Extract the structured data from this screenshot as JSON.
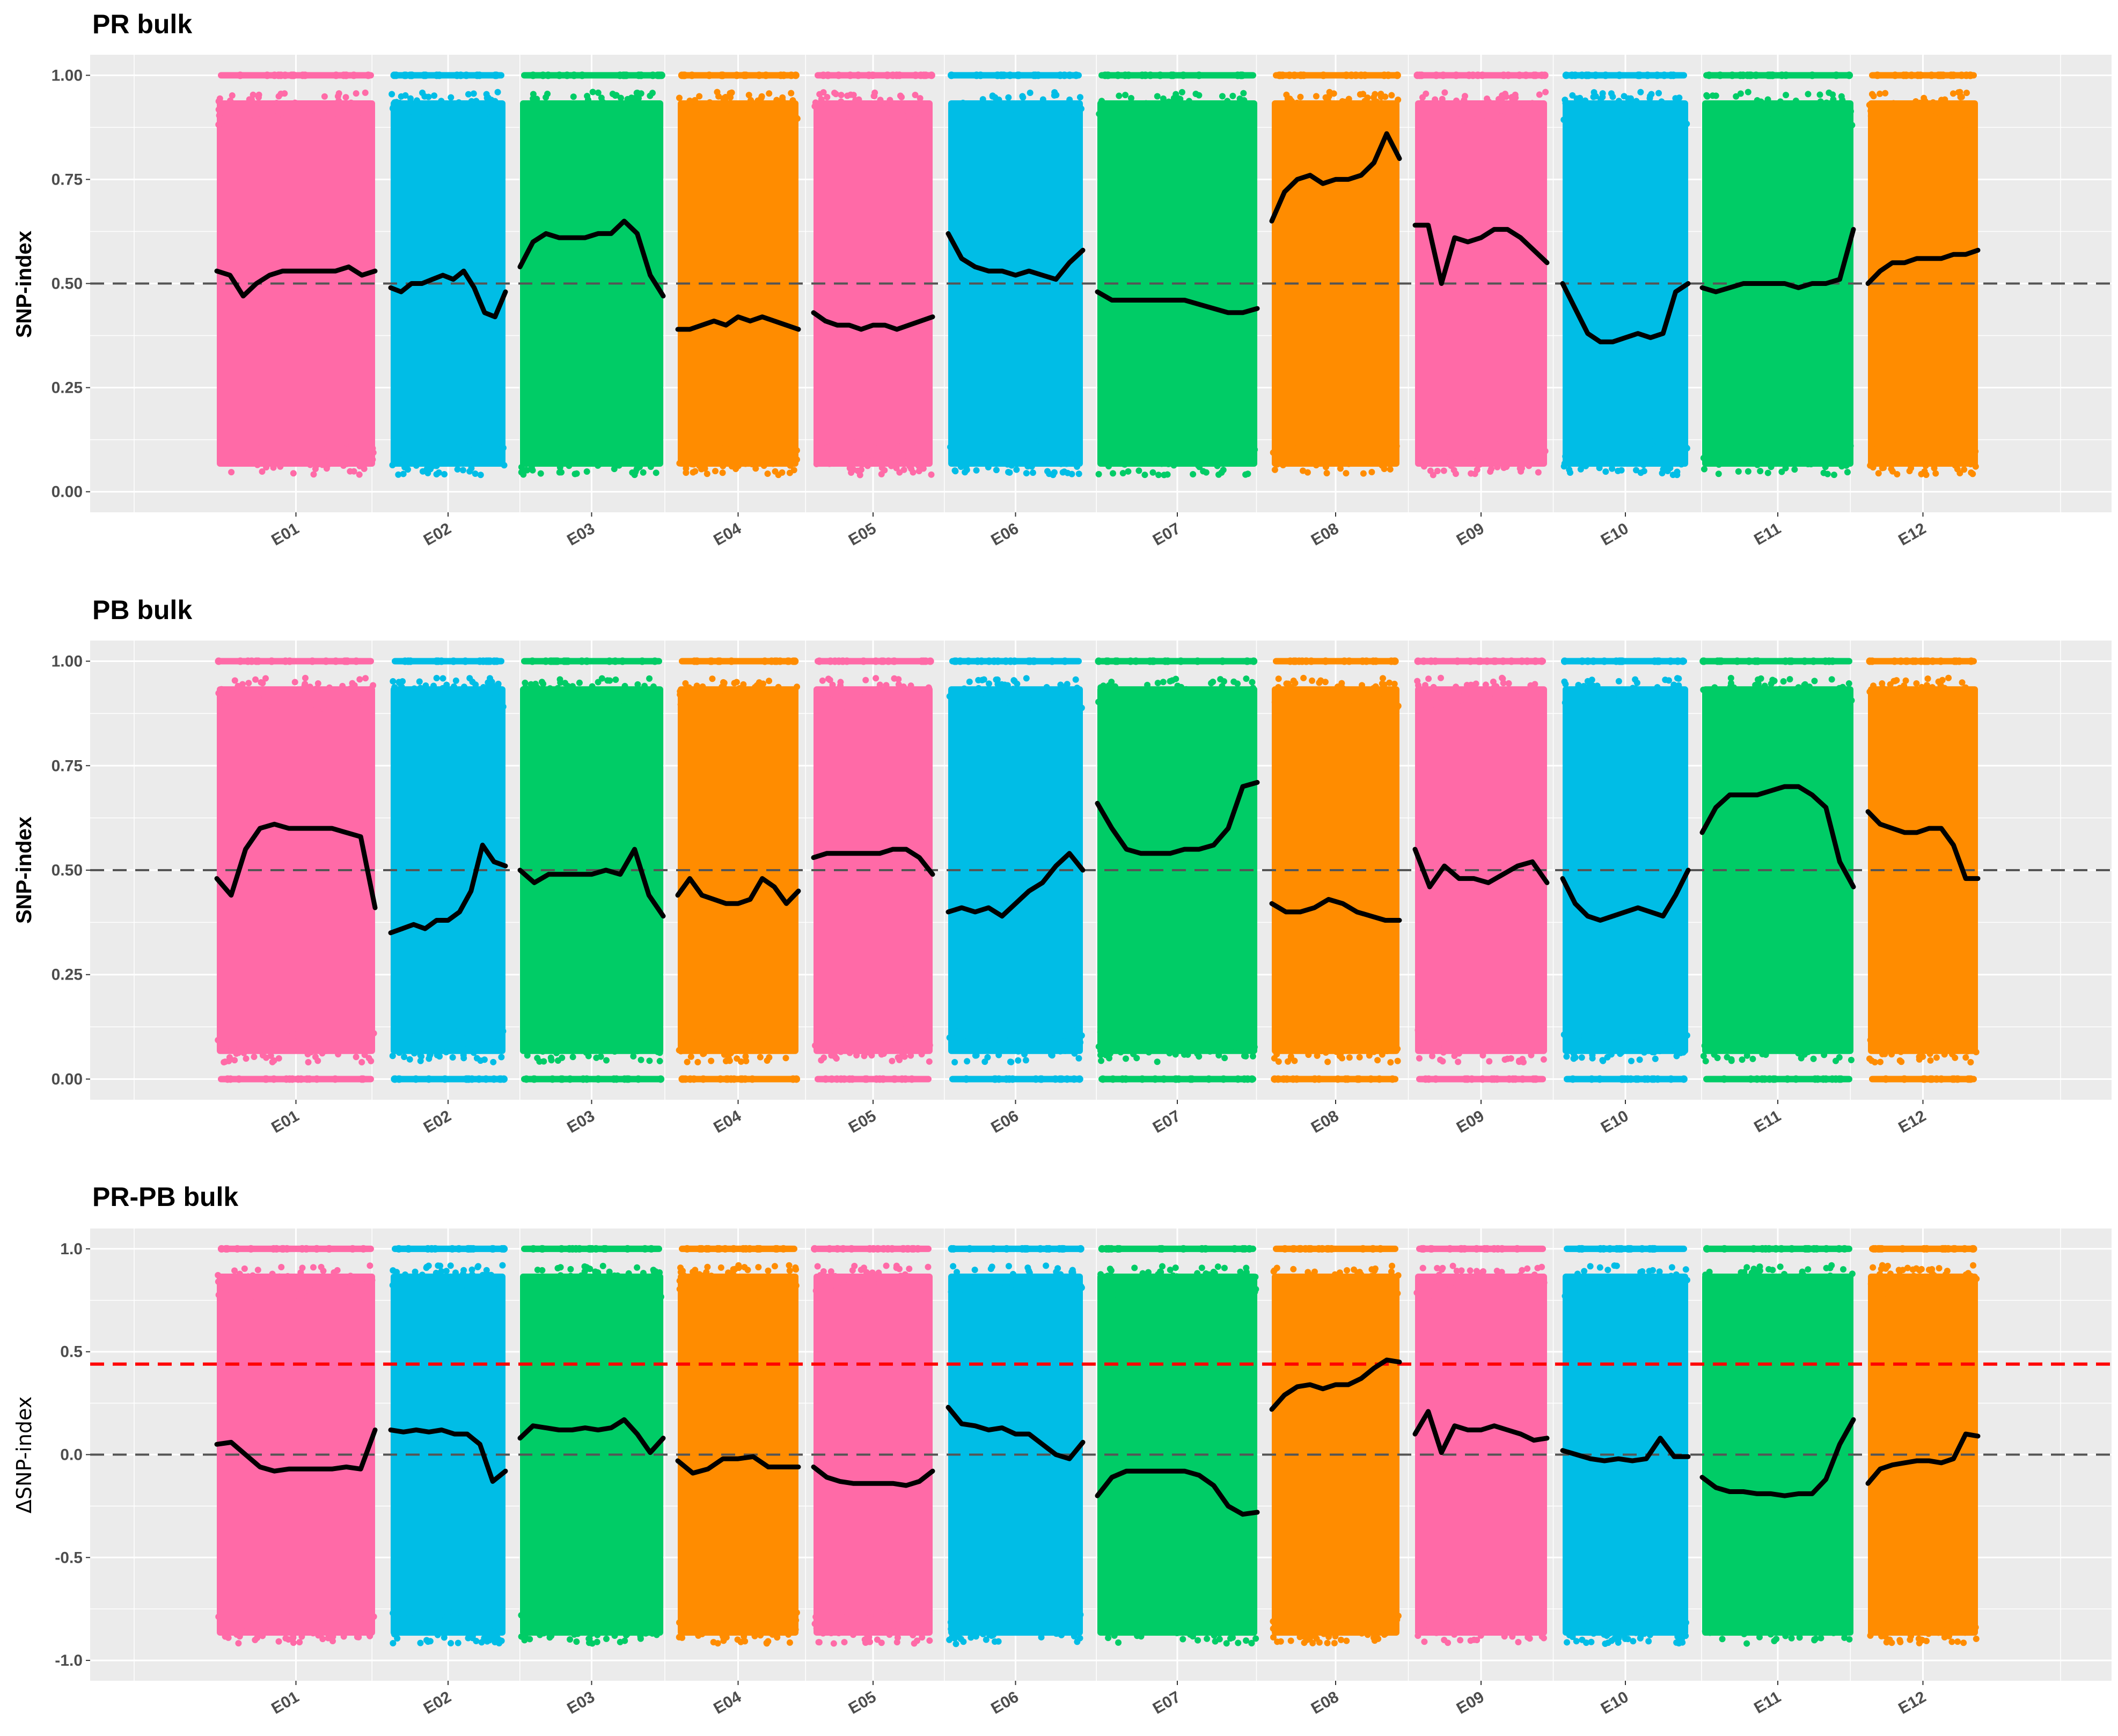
{
  "colors": {
    "pink": "#ff6aa7",
    "blue": "#00bde6",
    "green": "#00cc66",
    "orange": "#ff8c00",
    "trend": "#000000",
    "ref_line": "#555555",
    "threshold": "#ff0000",
    "panel_bg": "#ebebeb",
    "grid": "#ffffff"
  },
  "chart_data": [
    {
      "type": "scatter",
      "title": "PR bulk",
      "ylabel": "SNP-index",
      "ylim": [
        0,
        1
      ],
      "yticks": [
        "0.00",
        "0.25",
        "0.50",
        "0.75",
        "1.00"
      ],
      "categories": [
        "E01",
        "E02",
        "E03",
        "E04",
        "E05",
        "E06",
        "E07",
        "E08",
        "E09",
        "E10",
        "E11",
        "E12"
      ],
      "point_colors": [
        "pink",
        "blue",
        "green",
        "orange",
        "pink",
        "blue",
        "green",
        "orange",
        "pink",
        "blue",
        "green",
        "orange"
      ],
      "reference_lines": [
        {
          "y": 0.5,
          "style": "dashed",
          "color": "ref_line"
        }
      ],
      "grid": true,
      "series": [
        {
          "values": [
            [
              0.53,
              0.52,
              0.47,
              0.5,
              0.52,
              0.53,
              0.53,
              0.53,
              0.53,
              0.53,
              0.54,
              0.52,
              0.53
            ],
            [
              0.49,
              0.48,
              0.5,
              0.5,
              0.51,
              0.52,
              0.51,
              0.53,
              0.49,
              0.43,
              0.42,
              0.48
            ],
            [
              0.54,
              0.6,
              0.62,
              0.61,
              0.61,
              0.61,
              0.62,
              0.62,
              0.65,
              0.62,
              0.52,
              0.47
            ],
            [
              0.39,
              0.39,
              0.4,
              0.41,
              0.4,
              0.42,
              0.41,
              0.42,
              0.41,
              0.4,
              0.39
            ],
            [
              0.43,
              0.41,
              0.4,
              0.4,
              0.39,
              0.4,
              0.4,
              0.39,
              0.4,
              0.41,
              0.42
            ],
            [
              0.62,
              0.56,
              0.54,
              0.53,
              0.53,
              0.52,
              0.53,
              0.52,
              0.51,
              0.55,
              0.58
            ],
            [
              0.48,
              0.46,
              0.46,
              0.46,
              0.46,
              0.46,
              0.46,
              0.45,
              0.44,
              0.43,
              0.43,
              0.44
            ],
            [
              0.65,
              0.72,
              0.75,
              0.76,
              0.74,
              0.75,
              0.75,
              0.76,
              0.79,
              0.86,
              0.8
            ],
            [
              0.64,
              0.64,
              0.5,
              0.61,
              0.6,
              0.61,
              0.63,
              0.63,
              0.61,
              0.58,
              0.55
            ],
            [
              0.5,
              0.44,
              0.38,
              0.36,
              0.36,
              0.37,
              0.38,
              0.37,
              0.38,
              0.48,
              0.5
            ],
            [
              0.49,
              0.48,
              0.49,
              0.5,
              0.5,
              0.5,
              0.5,
              0.49,
              0.5,
              0.5,
              0.51,
              0.63
            ],
            [
              0.5,
              0.53,
              0.55,
              0.55,
              0.56,
              0.56,
              0.56,
              0.57,
              0.57,
              0.58
            ]
          ]
        }
      ]
    },
    {
      "type": "scatter",
      "title": "PB bulk",
      "ylabel": "SNP-index",
      "ylim": [
        0,
        1
      ],
      "yticks": [
        "0.00",
        "0.25",
        "0.50",
        "0.75",
        "1.00"
      ],
      "categories": [
        "E01",
        "E02",
        "E03",
        "E04",
        "E05",
        "E06",
        "E07",
        "E08",
        "E09",
        "E10",
        "E11",
        "E12"
      ],
      "point_colors": [
        "pink",
        "blue",
        "green",
        "orange",
        "pink",
        "blue",
        "green",
        "orange",
        "pink",
        "blue",
        "green",
        "orange"
      ],
      "reference_lines": [
        {
          "y": 0.5,
          "style": "dashed",
          "color": "ref_line"
        }
      ],
      "grid": true,
      "series": [
        {
          "values": [
            [
              0.48,
              0.44,
              0.55,
              0.6,
              0.61,
              0.6,
              0.6,
              0.6,
              0.6,
              0.59,
              0.58,
              0.41
            ],
            [
              0.35,
              0.36,
              0.37,
              0.36,
              0.38,
              0.38,
              0.4,
              0.45,
              0.56,
              0.52,
              0.51
            ],
            [
              0.5,
              0.47,
              0.49,
              0.49,
              0.49,
              0.49,
              0.5,
              0.49,
              0.55,
              0.44,
              0.39
            ],
            [
              0.44,
              0.48,
              0.44,
              0.43,
              0.42,
              0.42,
              0.43,
              0.48,
              0.46,
              0.42,
              0.45
            ],
            [
              0.53,
              0.54,
              0.54,
              0.54,
              0.54,
              0.54,
              0.55,
              0.55,
              0.53,
              0.49
            ],
            [
              0.4,
              0.41,
              0.4,
              0.41,
              0.39,
              0.42,
              0.45,
              0.47,
              0.51,
              0.54,
              0.5
            ],
            [
              0.66,
              0.6,
              0.55,
              0.54,
              0.54,
              0.54,
              0.55,
              0.55,
              0.56,
              0.6,
              0.7,
              0.71
            ],
            [
              0.42,
              0.4,
              0.4,
              0.41,
              0.43,
              0.42,
              0.4,
              0.39,
              0.38,
              0.38
            ],
            [
              0.55,
              0.46,
              0.51,
              0.48,
              0.48,
              0.47,
              0.49,
              0.51,
              0.52,
              0.47
            ],
            [
              0.48,
              0.42,
              0.39,
              0.38,
              0.39,
              0.4,
              0.41,
              0.4,
              0.39,
              0.44,
              0.5
            ],
            [
              0.59,
              0.65,
              0.68,
              0.68,
              0.68,
              0.69,
              0.7,
              0.7,
              0.68,
              0.65,
              0.52,
              0.46
            ],
            [
              0.64,
              0.61,
              0.6,
              0.59,
              0.59,
              0.6,
              0.6,
              0.56,
              0.48,
              0.48
            ]
          ]
        }
      ]
    },
    {
      "type": "scatter",
      "title": "PR-PB bulk",
      "ylabel": "ΔSNP-index",
      "ylim": [
        -1,
        1
      ],
      "yticks": [
        "-1.0",
        "-0.5",
        "0.0",
        "0.5",
        "1.0"
      ],
      "categories": [
        "E01",
        "E02",
        "E03",
        "E04",
        "E05",
        "E06",
        "E07",
        "E08",
        "E09",
        "E10",
        "E11",
        "E12"
      ],
      "point_colors": [
        "pink",
        "blue",
        "green",
        "orange",
        "pink",
        "blue",
        "green",
        "orange",
        "pink",
        "blue",
        "green",
        "orange"
      ],
      "reference_lines": [
        {
          "y": 0.0,
          "style": "dashed",
          "color": "ref_line"
        },
        {
          "y": 0.44,
          "style": "dashed",
          "color": "threshold"
        }
      ],
      "grid": true,
      "series": [
        {
          "values": [
            [
              0.05,
              0.06,
              0.0,
              -0.06,
              -0.08,
              -0.07,
              -0.07,
              -0.07,
              -0.07,
              -0.06,
              -0.07,
              0.12
            ],
            [
              0.12,
              0.11,
              0.12,
              0.11,
              0.12,
              0.1,
              0.1,
              0.05,
              -0.13,
              -0.08
            ],
            [
              0.08,
              0.14,
              0.13,
              0.12,
              0.12,
              0.13,
              0.12,
              0.13,
              0.17,
              0.1,
              0.01,
              0.08
            ],
            [
              -0.03,
              -0.09,
              -0.07,
              -0.02,
              -0.02,
              -0.01,
              -0.06,
              -0.06,
              -0.06
            ],
            [
              -0.06,
              -0.11,
              -0.13,
              -0.14,
              -0.14,
              -0.14,
              -0.14,
              -0.15,
              -0.13,
              -0.08
            ],
            [
              0.23,
              0.15,
              0.14,
              0.12,
              0.13,
              0.1,
              0.1,
              0.05,
              0.0,
              -0.02,
              0.06
            ],
            [
              -0.2,
              -0.11,
              -0.08,
              -0.08,
              -0.08,
              -0.08,
              -0.08,
              -0.1,
              -0.15,
              -0.25,
              -0.29,
              -0.28
            ],
            [
              0.22,
              0.29,
              0.33,
              0.34,
              0.32,
              0.34,
              0.34,
              0.37,
              0.42,
              0.46,
              0.45
            ],
            [
              0.1,
              0.21,
              0.01,
              0.14,
              0.12,
              0.12,
              0.14,
              0.12,
              0.1,
              0.07,
              0.08
            ],
            [
              0.02,
              0.0,
              -0.02,
              -0.03,
              -0.02,
              -0.03,
              -0.02,
              0.08,
              -0.01,
              -0.01
            ],
            [
              -0.11,
              -0.16,
              -0.18,
              -0.18,
              -0.19,
              -0.19,
              -0.2,
              -0.19,
              -0.19,
              -0.12,
              0.05,
              0.17
            ],
            [
              -0.14,
              -0.07,
              -0.05,
              -0.04,
              -0.03,
              -0.03,
              -0.04,
              -0.02,
              0.1,
              0.09
            ]
          ]
        }
      ]
    }
  ]
}
